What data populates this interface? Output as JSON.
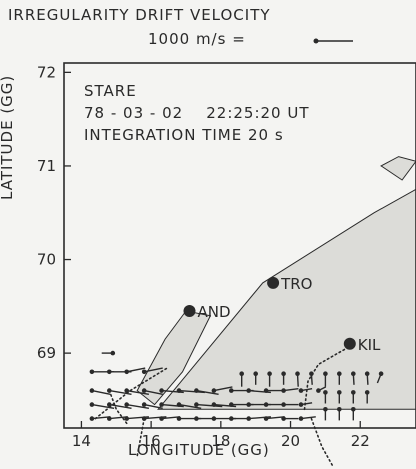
{
  "header": {
    "title": "IRREGULARITY DRIFT VELOCITY",
    "scale_label": "1000 m/s ="
  },
  "panel": {
    "line1": "STARE",
    "line2": "78 - 03 - 02    22:25:20 UT",
    "line3": "INTEGRATION TIME 20 s"
  },
  "chart_data": {
    "type": "scatter",
    "xlabel": "LONGITUDE (GG)",
    "ylabel": "LATITUDE (GG)",
    "xlim": [
      13.5,
      23.6
    ],
    "ylim": [
      68.2,
      72.1
    ],
    "x_ticks": [
      14,
      16,
      18,
      20,
      22
    ],
    "y_ticks": [
      69,
      70,
      71,
      72
    ],
    "stations": [
      {
        "name": "AND",
        "lon": 17.1,
        "lat": 69.45
      },
      {
        "name": "TRO",
        "lon": 19.5,
        "lat": 69.75
      },
      {
        "name": "KIL",
        "lon": 21.7,
        "lat": 69.1
      }
    ],
    "aurora_region": [
      [
        16.2,
        68.4
      ],
      [
        19.2,
        69.75
      ],
      [
        22.4,
        70.5
      ],
      [
        23.6,
        70.75
      ],
      [
        23.6,
        68.4
      ]
    ],
    "aurora_island": [
      [
        22.6,
        71.0
      ],
      [
        23.2,
        70.85
      ],
      [
        23.6,
        71.05
      ],
      [
        23.1,
        71.1
      ]
    ],
    "and_blob": [
      [
        15.6,
        68.6
      ],
      [
        16.4,
        69.15
      ],
      [
        17.0,
        69.45
      ],
      [
        17.7,
        69.4
      ],
      [
        16.9,
        68.8
      ],
      [
        16.1,
        68.45
      ]
    ],
    "vectors": [
      {
        "lon": 14.3,
        "lat": 68.8,
        "vx": 0.6,
        "vy": 0.0
      },
      {
        "lon": 14.8,
        "lat": 68.8,
        "vx": 0.6,
        "vy": 0.0
      },
      {
        "lon": 15.3,
        "lat": 68.8,
        "vx": 0.5,
        "vy": 0.1
      },
      {
        "lon": 15.8,
        "lat": 68.8,
        "vx": 0.5,
        "vy": 0.1
      },
      {
        "lon": 14.9,
        "lat": 69.0,
        "vx": -0.3,
        "vy": 0.0
      },
      {
        "lon": 14.3,
        "lat": 68.6,
        "vx": 0.5,
        "vy": -0.1
      },
      {
        "lon": 14.8,
        "lat": 68.6,
        "vx": 0.6,
        "vy": -0.1
      },
      {
        "lon": 15.3,
        "lat": 68.6,
        "vx": 0.6,
        "vy": -0.1
      },
      {
        "lon": 15.8,
        "lat": 68.6,
        "vx": 0.5,
        "vy": -0.1
      },
      {
        "lon": 16.3,
        "lat": 68.6,
        "vx": 0.6,
        "vy": -0.05
      },
      {
        "lon": 16.8,
        "lat": 68.6,
        "vx": 0.7,
        "vy": -0.05
      },
      {
        "lon": 17.3,
        "lat": 68.6,
        "vx": 0.6,
        "vy": -0.1
      },
      {
        "lon": 17.8,
        "lat": 68.6,
        "vx": 0.5,
        "vy": 0.1
      },
      {
        "lon": 18.3,
        "lat": 68.6,
        "vx": 0.6,
        "vy": 0.0
      },
      {
        "lon": 18.8,
        "lat": 68.6,
        "vx": 0.6,
        "vy": -0.05
      },
      {
        "lon": 19.3,
        "lat": 68.6,
        "vx": 0.5,
        "vy": 0.0
      },
      {
        "lon": 19.8,
        "lat": 68.6,
        "vx": 0.4,
        "vy": 0.05
      },
      {
        "lon": 20.3,
        "lat": 68.6,
        "vx": 0.3,
        "vy": 0.05
      },
      {
        "lon": 20.8,
        "lat": 68.6,
        "vx": 0.2,
        "vy": 0.1
      },
      {
        "lon": 14.3,
        "lat": 68.45,
        "vx": 0.6,
        "vy": -0.1
      },
      {
        "lon": 14.8,
        "lat": 68.45,
        "vx": 0.6,
        "vy": -0.1
      },
      {
        "lon": 15.3,
        "lat": 68.45,
        "vx": 0.6,
        "vy": -0.1
      },
      {
        "lon": 15.8,
        "lat": 68.45,
        "vx": 0.5,
        "vy": -0.1
      },
      {
        "lon": 16.3,
        "lat": 68.45,
        "vx": 0.6,
        "vy": -0.05
      },
      {
        "lon": 16.8,
        "lat": 68.45,
        "vx": 0.6,
        "vy": -0.1
      },
      {
        "lon": 17.3,
        "lat": 68.45,
        "vx": 0.7,
        "vy": -0.05
      },
      {
        "lon": 17.8,
        "lat": 68.45,
        "vx": 0.6,
        "vy": -0.05
      },
      {
        "lon": 18.3,
        "lat": 68.45,
        "vx": 0.6,
        "vy": 0.0
      },
      {
        "lon": 18.8,
        "lat": 68.45,
        "vx": 0.6,
        "vy": 0.0
      },
      {
        "lon": 19.3,
        "lat": 68.45,
        "vx": 0.5,
        "vy": 0.0
      },
      {
        "lon": 19.8,
        "lat": 68.45,
        "vx": 0.4,
        "vy": 0.0
      },
      {
        "lon": 20.3,
        "lat": 68.45,
        "vx": 0.3,
        "vy": 0.05
      },
      {
        "lon": 14.3,
        "lat": 68.3,
        "vx": 0.5,
        "vy": 0.05
      },
      {
        "lon": 14.8,
        "lat": 68.3,
        "vx": 0.5,
        "vy": 0.05
      },
      {
        "lon": 15.3,
        "lat": 68.3,
        "vx": 0.6,
        "vy": 0.05
      },
      {
        "lon": 15.8,
        "lat": 68.3,
        "vx": 0.6,
        "vy": 0.05
      },
      {
        "lon": 16.3,
        "lat": 68.3,
        "vx": 0.5,
        "vy": 0.05
      },
      {
        "lon": 16.8,
        "lat": 68.3,
        "vx": 0.6,
        "vy": 0.0
      },
      {
        "lon": 17.3,
        "lat": 68.3,
        "vx": 0.5,
        "vy": 0.0
      },
      {
        "lon": 17.8,
        "lat": 68.3,
        "vx": 0.6,
        "vy": 0.0
      },
      {
        "lon": 18.3,
        "lat": 68.3,
        "vx": 0.5,
        "vy": 0.0
      },
      {
        "lon": 18.8,
        "lat": 68.3,
        "vx": 0.6,
        "vy": 0.05
      },
      {
        "lon": 19.3,
        "lat": 68.3,
        "vx": 0.5,
        "vy": 0.05
      },
      {
        "lon": 19.8,
        "lat": 68.3,
        "vx": 0.4,
        "vy": 0.0
      },
      {
        "lon": 20.3,
        "lat": 68.3,
        "vx": 0.4,
        "vy": 0.05
      },
      {
        "lon": 18.6,
        "lat": 68.78,
        "vx": 0.0,
        "vy": -0.35
      },
      {
        "lon": 19.0,
        "lat": 68.78,
        "vx": 0.0,
        "vy": -0.3
      },
      {
        "lon": 19.4,
        "lat": 68.78,
        "vx": 0.0,
        "vy": -0.35
      },
      {
        "lon": 19.8,
        "lat": 68.78,
        "vx": 0.0,
        "vy": -0.3
      },
      {
        "lon": 20.2,
        "lat": 68.78,
        "vx": 0.02,
        "vy": -0.35
      },
      {
        "lon": 20.6,
        "lat": 68.78,
        "vx": 0.02,
        "vy": -0.3
      },
      {
        "lon": 21.0,
        "lat": 68.78,
        "vx": 0.0,
        "vy": -0.35
      },
      {
        "lon": 21.4,
        "lat": 68.78,
        "vx": 0.0,
        "vy": -0.3
      },
      {
        "lon": 21.8,
        "lat": 68.78,
        "vx": 0.02,
        "vy": -0.3
      },
      {
        "lon": 22.2,
        "lat": 68.78,
        "vx": 0.02,
        "vy": -0.3
      },
      {
        "lon": 22.6,
        "lat": 68.78,
        "vx": -0.1,
        "vy": -0.25
      },
      {
        "lon": 21.0,
        "lat": 68.58,
        "vx": 0.0,
        "vy": -0.3
      },
      {
        "lon": 21.4,
        "lat": 68.58,
        "vx": 0.0,
        "vy": -0.3
      },
      {
        "lon": 21.8,
        "lat": 68.58,
        "vx": 0.0,
        "vy": -0.3
      },
      {
        "lon": 22.2,
        "lat": 68.58,
        "vx": 0.0,
        "vy": -0.3
      },
      {
        "lon": 21.0,
        "lat": 68.4,
        "vx": 0.0,
        "vy": -0.3
      },
      {
        "lon": 21.4,
        "lat": 68.4,
        "vx": 0.0,
        "vy": -0.3
      },
      {
        "lon": 21.8,
        "lat": 68.4,
        "vx": 0.0,
        "vy": -0.3
      }
    ],
    "dotted_lines": [
      [
        [
          14.4,
          68.3
        ],
        [
          15.4,
          68.6
        ],
        [
          16.5,
          68.85
        ]
      ],
      [
        [
          15.3,
          68.25
        ],
        [
          15.0,
          68.4
        ],
        [
          14.8,
          68.6
        ]
      ],
      [
        [
          20.4,
          68.4
        ],
        [
          20.5,
          68.7
        ],
        [
          20.8,
          68.88
        ],
        [
          21.6,
          69.05
        ]
      ],
      [
        [
          20.6,
          68.3
        ],
        [
          20.9,
          68.0
        ],
        [
          21.2,
          67.8
        ]
      ],
      [
        [
          15.8,
          68.3
        ],
        [
          15.7,
          68.1
        ],
        [
          15.6,
          67.9
        ]
      ]
    ],
    "colors": {
      "ink": "#2a2a2a",
      "fill": "#dcdcd8",
      "background": "#f4f4f2"
    }
  }
}
